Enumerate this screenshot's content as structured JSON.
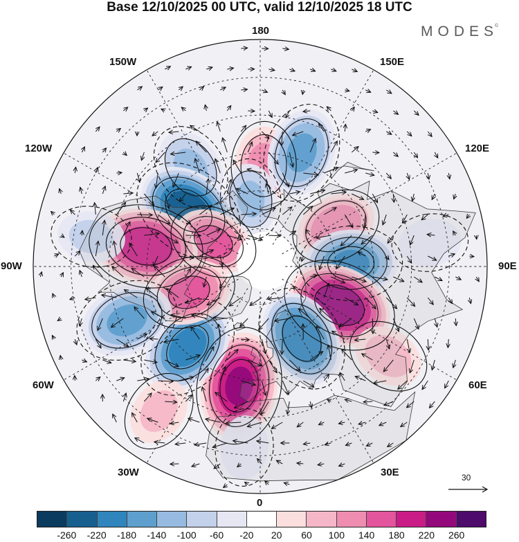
{
  "title": "Base 12/10/2025 00 UTC, valid 12/10/2025 18 UTC",
  "logo": "MODES",
  "logo_mark": "©",
  "longitude_labels": {
    "top": "180",
    "bottom": "0",
    "left": "90W",
    "right": "90E",
    "upper_left_1": "150W",
    "upper_left_2": "120W",
    "lower_left_1": "60W",
    "lower_left_2": "30W",
    "upper_right_1": "150E",
    "upper_right_2": "120E",
    "lower_right_1": "60E",
    "lower_right_2": "30E"
  },
  "reference_vector": {
    "label": "30"
  },
  "colorbar": {
    "colors": [
      "#0b3b5e",
      "#175f8f",
      "#2f85bc",
      "#5f9fce",
      "#97bbe0",
      "#c3d1ea",
      "#e6e7f3",
      "#ffffff",
      "#fbdede",
      "#f5b7c7",
      "#ef8db1",
      "#e3559c",
      "#c91c86",
      "#93097b",
      "#4e0b6c"
    ],
    "ticks": [
      "-260",
      "-220",
      "-180",
      "-140",
      "-100",
      "-60",
      "-20",
      "20",
      "60",
      "100",
      "140",
      "180",
      "220",
      "260"
    ]
  },
  "anomalies": [
    {
      "name": "blue-150w",
      "sign": -1,
      "lon": -145,
      "lat": 42,
      "amp": 100
    },
    {
      "name": "pink-180n",
      "sign": 1,
      "lon": 178,
      "lat": 50,
      "amp": 110
    },
    {
      "name": "blue-170e",
      "sign": -1,
      "lon": 160,
      "lat": 42,
      "amp": 140
    },
    {
      "name": "blue-160w-inner",
      "sign": -1,
      "lon": -172,
      "lat": 63,
      "amp": 100
    },
    {
      "name": "blue-alaska-strong",
      "sign": -1,
      "lon": -128,
      "lat": 54,
      "amp": 240
    },
    {
      "name": "pink-arctic-120w",
      "sign": 1,
      "lon": -118,
      "lat": 69,
      "amp": 150
    },
    {
      "name": "pink-east-pacific",
      "sign": 1,
      "lon": -100,
      "lat": 44,
      "amp": 210
    },
    {
      "name": "pink-siberia-110e",
      "sign": 1,
      "lon": 118,
      "lat": 56,
      "amp": 130
    },
    {
      "name": "blue-siberia-90e",
      "sign": -1,
      "lon": 92,
      "lat": 54,
      "amp": 180
    },
    {
      "name": "pink-central-asia",
      "sign": 1,
      "lon": 64,
      "lat": 55,
      "amp": 250
    },
    {
      "name": "blue-east-europe",
      "sign": -1,
      "lon": 30,
      "lat": 57,
      "amp": 210
    },
    {
      "name": "pink-west-europe",
      "sign": 1,
      "lon": -10,
      "lat": 42,
      "amp": 220
    },
    {
      "name": "blue-north-atlantic",
      "sign": -1,
      "lon": -42,
      "lat": 47,
      "amp": 190
    },
    {
      "name": "pink-labrador",
      "sign": 1,
      "lon": -70,
      "lat": 60,
      "amp": 150
    },
    {
      "name": "blue-west-atlantic",
      "sign": -1,
      "lon": -68,
      "lat": 33,
      "amp": 140
    },
    {
      "name": "pink-subtropic-60e",
      "sign": 1,
      "lon": 55,
      "lat": 28,
      "amp": 70
    },
    {
      "name": "pink-subtropic-40w",
      "sign": 1,
      "lon": -35,
      "lat": 20,
      "amp": 60
    },
    {
      "name": "blue-subtropic-10w",
      "sign": -1,
      "lon": -5,
      "lat": 18,
      "amp": 50
    },
    {
      "name": "blue-far-east",
      "sign": -1,
      "lon": 98,
      "lat": 22,
      "amp": 50
    },
    {
      "name": "blue-west-pacific",
      "sign": -1,
      "lon": -100,
      "lat": 22,
      "amp": 60
    }
  ]
}
